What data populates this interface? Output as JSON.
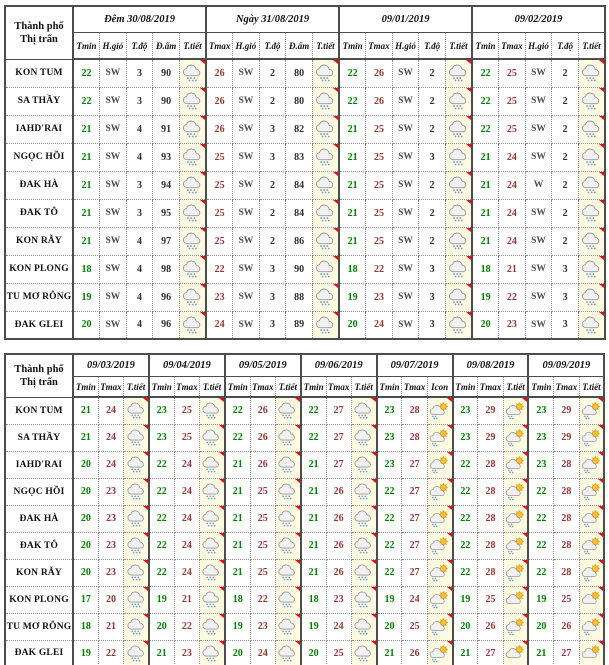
{
  "colors": {
    "tmin_green": "#008000",
    "tmax_red": "#953735",
    "wind_gray": "#4d4d4d",
    "border_solid": "#4d4d4d",
    "border_dotted": "#8f8f8f",
    "icon_cell_bg": "#fcfae1",
    "comment_mark_red": "#ff0000",
    "sun_yellow": "#fdc12f",
    "rain_blue": "#74a3d6"
  },
  "icon_legend": {
    "rain": "gray cloud with rain drops",
    "sun-rain": "sun behind cloud with rain drops",
    "sun-cloud": "sun behind cloud"
  },
  "table1": {
    "corner": [
      "Thành phố",
      "Thị trấn"
    ],
    "groups": [
      {
        "label": "Đêm 30/08/2019",
        "cols": [
          "Tmin",
          "H.gió",
          "T.độ",
          "Đ.ẩm",
          "T.tiết"
        ]
      },
      {
        "label": "Ngày 31/08/2019",
        "cols": [
          "Tmax",
          "H.gió",
          "T.độ",
          "Đ.ẩm",
          "T.tiết"
        ]
      },
      {
        "label": "09/01/2019",
        "cols": [
          "Tmin",
          "Tmax",
          "H.gió",
          "T.độ",
          "T.tiết"
        ]
      },
      {
        "label": "09/02/2019",
        "cols": [
          "Tmin",
          "Tmax",
          "H.gió",
          "T.độ",
          "T.tiết"
        ]
      }
    ],
    "rows": [
      {
        "name": "KON TUM",
        "groups": [
          [
            "22",
            "SW",
            "3",
            "90",
            "rain"
          ],
          [
            "26",
            "SW",
            "2",
            "80",
            "rain"
          ],
          [
            "22",
            "26",
            "SW",
            "2",
            "rain"
          ],
          [
            "22",
            "25",
            "SW",
            "2",
            "rain"
          ]
        ]
      },
      {
        "name": "SA THẦY",
        "groups": [
          [
            "22",
            "SW",
            "3",
            "90",
            "rain"
          ],
          [
            "26",
            "SW",
            "2",
            "80",
            "rain"
          ],
          [
            "22",
            "26",
            "SW",
            "2",
            "rain"
          ],
          [
            "22",
            "25",
            "SW",
            "2",
            "rain"
          ]
        ]
      },
      {
        "name": "IAHD'RAI",
        "groups": [
          [
            "21",
            "SW",
            "4",
            "91",
            "rain"
          ],
          [
            "26",
            "SW",
            "3",
            "82",
            "rain"
          ],
          [
            "21",
            "25",
            "SW",
            "2",
            "rain"
          ],
          [
            "22",
            "25",
            "SW",
            "2",
            "rain"
          ]
        ]
      },
      {
        "name": "NGỌC HỒI",
        "groups": [
          [
            "21",
            "SW",
            "4",
            "93",
            "rain"
          ],
          [
            "25",
            "SW",
            "3",
            "83",
            "rain"
          ],
          [
            "21",
            "25",
            "SW",
            "3",
            "rain"
          ],
          [
            "21",
            "24",
            "SW",
            "2",
            "rain"
          ]
        ]
      },
      {
        "name": "ĐAK HÀ",
        "groups": [
          [
            "21",
            "SW",
            "3",
            "94",
            "rain"
          ],
          [
            "25",
            "SW",
            "2",
            "84",
            "rain"
          ],
          [
            "21",
            "25",
            "SW",
            "2",
            "rain"
          ],
          [
            "21",
            "24",
            "W",
            "2",
            "rain"
          ]
        ]
      },
      {
        "name": "ĐAK TÔ",
        "groups": [
          [
            "21",
            "SW",
            "3",
            "95",
            "rain"
          ],
          [
            "25",
            "SW",
            "2",
            "84",
            "rain"
          ],
          [
            "21",
            "25",
            "SW",
            "2",
            "rain"
          ],
          [
            "21",
            "24",
            "SW",
            "2",
            "rain"
          ]
        ]
      },
      {
        "name": "KON RẪY",
        "groups": [
          [
            "21",
            "SW",
            "4",
            "97",
            "rain"
          ],
          [
            "25",
            "SW",
            "2",
            "86",
            "rain"
          ],
          [
            "21",
            "25",
            "SW",
            "2",
            "rain"
          ],
          [
            "21",
            "24",
            "SW",
            "2",
            "rain"
          ]
        ]
      },
      {
        "name": "KON PLONG",
        "groups": [
          [
            "18",
            "SW",
            "4",
            "98",
            "rain"
          ],
          [
            "22",
            "SW",
            "3",
            "90",
            "rain"
          ],
          [
            "18",
            "22",
            "SW",
            "3",
            "rain"
          ],
          [
            "18",
            "21",
            "SW",
            "3",
            "rain"
          ]
        ]
      },
      {
        "name": "TU MƠ RÔNG",
        "groups": [
          [
            "19",
            "SW",
            "4",
            "96",
            "rain"
          ],
          [
            "23",
            "SW",
            "3",
            "88",
            "rain"
          ],
          [
            "19",
            "23",
            "SW",
            "3",
            "rain"
          ],
          [
            "19",
            "22",
            "SW",
            "3",
            "rain"
          ]
        ]
      },
      {
        "name": "ĐAK GLEI",
        "groups": [
          [
            "20",
            "SW",
            "4",
            "96",
            "rain"
          ],
          [
            "24",
            "SW",
            "3",
            "89",
            "rain"
          ],
          [
            "20",
            "24",
            "SW",
            "3",
            "rain"
          ],
          [
            "20",
            "23",
            "SW",
            "3",
            "rain"
          ]
        ]
      }
    ]
  },
  "table2": {
    "corner": [
      "Thành phố",
      "Thị trấn"
    ],
    "groups": [
      {
        "label": "09/03/2019",
        "cols": [
          "Tmin",
          "Tmax",
          "T.tiết"
        ]
      },
      {
        "label": "09/04/2019",
        "cols": [
          "Tmin",
          "Tmax",
          "T.tiết"
        ]
      },
      {
        "label": "09/05/2019",
        "cols": [
          "Tmin",
          "Tmax",
          "T.tiết"
        ]
      },
      {
        "label": "09/06/2019",
        "cols": [
          "Tmin",
          "Tmax",
          "T.tiết"
        ]
      },
      {
        "label": "09/07/2019",
        "cols": [
          "Tmin",
          "Tmax",
          "Icon"
        ]
      },
      {
        "label": "09/08/2019",
        "cols": [
          "Tmin",
          "Tmax",
          "T.tiết"
        ]
      },
      {
        "label": "09/09/2019",
        "cols": [
          "Tmin",
          "Tmax",
          "T.tiết"
        ]
      }
    ],
    "rows": [
      {
        "name": "KON TUM",
        "groups": [
          [
            "21",
            "24",
            "rain"
          ],
          [
            "23",
            "25",
            "rain"
          ],
          [
            "22",
            "26",
            "rain"
          ],
          [
            "22",
            "27",
            "rain"
          ],
          [
            "23",
            "28",
            "sun-rain"
          ],
          [
            "23",
            "29",
            "sun-rain"
          ],
          [
            "23",
            "29",
            "sun-rain"
          ]
        ]
      },
      {
        "name": "SA THẦY",
        "groups": [
          [
            "21",
            "24",
            "rain"
          ],
          [
            "23",
            "25",
            "rain"
          ],
          [
            "22",
            "26",
            "rain"
          ],
          [
            "22",
            "27",
            "rain"
          ],
          [
            "23",
            "28",
            "sun-rain"
          ],
          [
            "23",
            "29",
            "sun-rain"
          ],
          [
            "23",
            "29",
            "sun-rain"
          ]
        ]
      },
      {
        "name": "IAHD'RAI",
        "groups": [
          [
            "20",
            "24",
            "rain"
          ],
          [
            "22",
            "24",
            "rain"
          ],
          [
            "21",
            "26",
            "rain"
          ],
          [
            "21",
            "27",
            "rain"
          ],
          [
            "23",
            "27",
            "sun-rain"
          ],
          [
            "22",
            "28",
            "sun-rain"
          ],
          [
            "23",
            "28",
            "sun-rain"
          ]
        ]
      },
      {
        "name": "NGỌC HỒI",
        "groups": [
          [
            "20",
            "23",
            "rain"
          ],
          [
            "22",
            "24",
            "rain"
          ],
          [
            "21",
            "25",
            "rain"
          ],
          [
            "21",
            "26",
            "rain"
          ],
          [
            "22",
            "27",
            "sun-rain"
          ],
          [
            "22",
            "28",
            "sun-rain"
          ],
          [
            "22",
            "28",
            "sun-rain"
          ]
        ]
      },
      {
        "name": "ĐAK HÀ",
        "groups": [
          [
            "20",
            "23",
            "rain"
          ],
          [
            "22",
            "24",
            "rain"
          ],
          [
            "21",
            "25",
            "rain"
          ],
          [
            "21",
            "26",
            "rain"
          ],
          [
            "22",
            "27",
            "sun-rain"
          ],
          [
            "22",
            "28",
            "sun-rain"
          ],
          [
            "22",
            "28",
            "sun-rain"
          ]
        ]
      },
      {
        "name": "ĐAK TÔ",
        "groups": [
          [
            "20",
            "23",
            "rain"
          ],
          [
            "22",
            "24",
            "rain"
          ],
          [
            "21",
            "25",
            "rain"
          ],
          [
            "21",
            "26",
            "rain"
          ],
          [
            "22",
            "27",
            "sun-rain"
          ],
          [
            "22",
            "28",
            "sun-rain"
          ],
          [
            "22",
            "28",
            "sun-rain"
          ]
        ]
      },
      {
        "name": "KON RẪY",
        "groups": [
          [
            "20",
            "23",
            "rain"
          ],
          [
            "22",
            "24",
            "rain"
          ],
          [
            "21",
            "25",
            "rain"
          ],
          [
            "21",
            "26",
            "rain"
          ],
          [
            "22",
            "27",
            "sun-rain"
          ],
          [
            "22",
            "28",
            "sun-rain"
          ],
          [
            "22",
            "28",
            "sun-rain"
          ]
        ]
      },
      {
        "name": "KON PLONG",
        "groups": [
          [
            "17",
            "20",
            "rain"
          ],
          [
            "19",
            "21",
            "rain"
          ],
          [
            "18",
            "22",
            "rain"
          ],
          [
            "18",
            "23",
            "rain"
          ],
          [
            "19",
            "24",
            "sun-rain"
          ],
          [
            "19",
            "25",
            "sun-cloud"
          ],
          [
            "19",
            "25",
            "sun-cloud"
          ]
        ]
      },
      {
        "name": "TU MƠ RÔNG",
        "groups": [
          [
            "18",
            "21",
            "rain"
          ],
          [
            "20",
            "22",
            "rain"
          ],
          [
            "19",
            "23",
            "rain"
          ],
          [
            "19",
            "24",
            "rain"
          ],
          [
            "20",
            "25",
            "sun-rain"
          ],
          [
            "20",
            "26",
            "sun-rain"
          ],
          [
            "20",
            "26",
            "sun-rain"
          ]
        ]
      },
      {
        "name": "ĐAK GLEI",
        "groups": [
          [
            "19",
            "22",
            "rain"
          ],
          [
            "21",
            "23",
            "rain"
          ],
          [
            "20",
            "24",
            "rain"
          ],
          [
            "20",
            "25",
            "rain"
          ],
          [
            "21",
            "26",
            "sun-rain"
          ],
          [
            "21",
            "27",
            "sun-cloud"
          ],
          [
            "21",
            "27",
            "sun-cloud"
          ]
        ]
      }
    ]
  }
}
